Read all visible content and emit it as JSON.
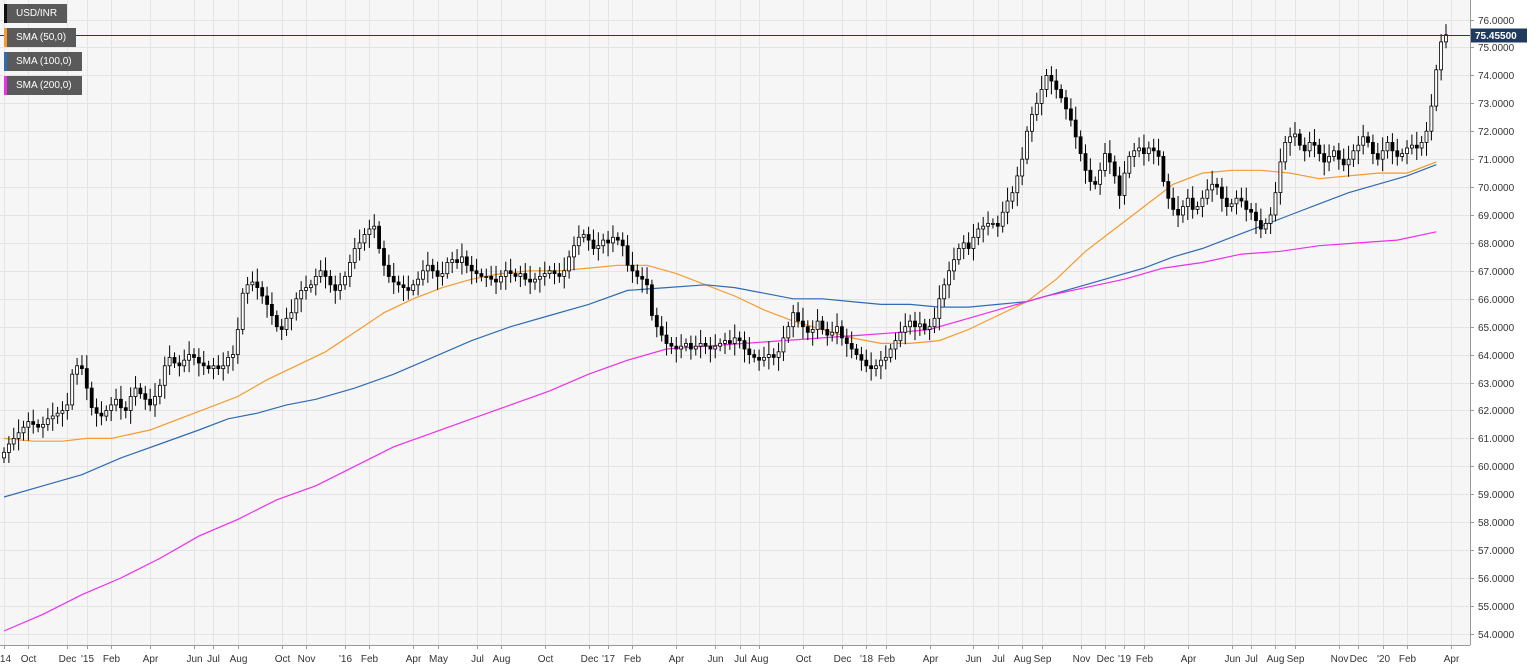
{
  "chart_data": {
    "type": "candlestick",
    "title": "",
    "symbol": "USD/INR",
    "last_price_label": "75.45500",
    "last_price": 75.455,
    "ylim": [
      53.6,
      76.7
    ],
    "y_ticks": [
      {
        "value": 76,
        "label": "76.0000"
      },
      {
        "value": 75,
        "label": "75.0000"
      },
      {
        "value": 74,
        "label": "74.0000"
      },
      {
        "value": 73,
        "label": "73.0000"
      },
      {
        "value": 72,
        "label": "72.0000"
      },
      {
        "value": 71,
        "label": "71.0000"
      },
      {
        "value": 70,
        "label": "70.0000"
      },
      {
        "value": 69,
        "label": "69.0000"
      },
      {
        "value": 68,
        "label": "68.0000"
      },
      {
        "value": 67,
        "label": "67.0000"
      },
      {
        "value": 66,
        "label": "66.0000"
      },
      {
        "value": 65,
        "label": "65.0000"
      },
      {
        "value": 64,
        "label": "64.0000"
      },
      {
        "value": 63,
        "label": "63.0000"
      },
      {
        "value": 62,
        "label": "62.0000"
      },
      {
        "value": 61,
        "label": "61.0000"
      },
      {
        "value": 60,
        "label": "60.0000"
      },
      {
        "value": 59,
        "label": "59.0000"
      },
      {
        "value": 58,
        "label": "58.0000"
      },
      {
        "value": 57,
        "label": "57.0000"
      },
      {
        "value": 56,
        "label": "56.0000"
      },
      {
        "value": 55,
        "label": "55.0000"
      },
      {
        "value": 54,
        "label": "54.0000"
      }
    ],
    "x_ticks": [
      {
        "i": 0,
        "label": "'14"
      },
      {
        "i": 5,
        "label": "Oct"
      },
      {
        "i": 13,
        "label": "Dec"
      },
      {
        "i": 17,
        "label": "'15"
      },
      {
        "i": 22,
        "label": "Feb"
      },
      {
        "i": 30,
        "label": "Apr"
      },
      {
        "i": 39,
        "label": "Jun"
      },
      {
        "i": 43,
        "label": "Jul"
      },
      {
        "i": 48,
        "label": "Aug"
      },
      {
        "i": 57,
        "label": "Oct"
      },
      {
        "i": 62,
        "label": "Nov"
      },
      {
        "i": 70,
        "label": "'16"
      },
      {
        "i": 75,
        "label": "Feb"
      },
      {
        "i": 84,
        "label": "Apr"
      },
      {
        "i": 89,
        "label": "May"
      },
      {
        "i": 97,
        "label": "Jul"
      },
      {
        "i": 102,
        "label": "Aug"
      },
      {
        "i": 111,
        "label": "Oct"
      },
      {
        "i": 120,
        "label": "Dec"
      },
      {
        "i": 124,
        "label": "'17"
      },
      {
        "i": 129,
        "label": "Feb"
      },
      {
        "i": 138,
        "label": "Apr"
      },
      {
        "i": 146,
        "label": "Jun"
      },
      {
        "i": 151,
        "label": "Jul"
      },
      {
        "i": 155,
        "label": "Aug"
      },
      {
        "i": 164,
        "label": "Oct"
      },
      {
        "i": 172,
        "label": "Dec"
      },
      {
        "i": 177,
        "label": "'18"
      },
      {
        "i": 181,
        "label": "Feb"
      },
      {
        "i": 190,
        "label": "Apr"
      },
      {
        "i": 199,
        "label": "Jun"
      },
      {
        "i": 204,
        "label": "Jul"
      },
      {
        "i": 209,
        "label": "Aug"
      },
      {
        "i": 213,
        "label": "Sep"
      },
      {
        "i": 221,
        "label": "Nov"
      },
      {
        "i": 226,
        "label": "Dec"
      },
      {
        "i": 230,
        "label": "'19"
      },
      {
        "i": 234,
        "label": "Feb"
      },
      {
        "i": 243,
        "label": "Apr"
      },
      {
        "i": 252,
        "label": "Jun"
      },
      {
        "i": 256,
        "label": "Jul"
      },
      {
        "i": 261,
        "label": "Aug"
      },
      {
        "i": 265,
        "label": "Sep"
      },
      {
        "i": 274,
        "label": "Nov"
      },
      {
        "i": 278,
        "label": "Dec"
      },
      {
        "i": 283,
        "label": "'20"
      },
      {
        "i": 288,
        "label": "Feb"
      },
      {
        "i": 297,
        "label": "Apr"
      }
    ],
    "closes": [
      60.5,
      60.8,
      61.0,
      61.2,
      61.4,
      61.6,
      61.5,
      61.4,
      61.5,
      61.7,
      61.8,
      61.9,
      62.0,
      62.2,
      63.3,
      63.6,
      63.5,
      62.8,
      62.1,
      61.9,
      61.8,
      62.0,
      62.2,
      62.4,
      62.1,
      62.0,
      62.5,
      62.8,
      62.6,
      62.4,
      62.2,
      62.5,
      62.9,
      63.6,
      63.9,
      63.7,
      63.6,
      63.8,
      64.0,
      63.9,
      63.7,
      63.6,
      63.5,
      63.6,
      63.5,
      63.6,
      63.9,
      64.0,
      64.9,
      66.2,
      66.5,
      66.6,
      66.4,
      66.1,
      65.8,
      65.4,
      65.0,
      64.9,
      65.3,
      65.5,
      66.0,
      66.3,
      66.4,
      66.5,
      66.8,
      67.0,
      66.8,
      66.5,
      66.3,
      66.5,
      66.8,
      67.3,
      67.8,
      68.0,
      68.3,
      68.5,
      68.6,
      67.8,
      67.2,
      66.8,
      66.6,
      66.5,
      66.4,
      66.3,
      66.5,
      66.7,
      67.0,
      67.2,
      67.0,
      66.8,
      66.9,
      67.3,
      67.4,
      67.3,
      67.5,
      67.2,
      67.0,
      66.9,
      66.8,
      66.8,
      66.7,
      66.6,
      66.8,
      67.0,
      66.9,
      66.8,
      66.9,
      66.7,
      66.6,
      66.7,
      66.8,
      66.9,
      67.0,
      66.9,
      66.8,
      67.0,
      67.5,
      67.9,
      68.2,
      68.3,
      68.1,
      67.8,
      67.9,
      68.1,
      68.0,
      68.2,
      68.1,
      67.9,
      67.2,
      67.0,
      66.8,
      66.7,
      66.5,
      65.4,
      65.0,
      64.7,
      64.4,
      64.3,
      64.2,
      64.3,
      64.4,
      64.2,
      64.3,
      64.4,
      64.3,
      64.2,
      64.3,
      64.4,
      64.5,
      64.4,
      64.6,
      64.5,
      64.2,
      64.0,
      63.9,
      63.8,
      63.9,
      64.0,
      63.9,
      64.1,
      64.6,
      65.0,
      65.5,
      65.2,
      65.0,
      64.8,
      64.9,
      65.2,
      64.9,
      64.7,
      64.8,
      65.0,
      64.6,
      64.4,
      64.2,
      64.0,
      63.8,
      63.6,
      63.5,
      63.6,
      63.8,
      63.9,
      64.2,
      64.5,
      64.8,
      65.0,
      65.2,
      65.0,
      65.1,
      64.9,
      65.0,
      65.3,
      66.0,
      66.5,
      67.0,
      67.4,
      67.8,
      68.0,
      67.8,
      68.2,
      68.5,
      68.6,
      68.7,
      68.7,
      68.6,
      69.1,
      69.5,
      69.8,
      70.4,
      71.0,
      72.0,
      72.6,
      73.0,
      73.5,
      74.0,
      73.8,
      73.5,
      73.2,
      72.8,
      72.4,
      71.8,
      71.2,
      70.6,
      70.2,
      70.1,
      70.6,
      71.2,
      70.9,
      70.4,
      69.7,
      70.5,
      71.1,
      71.3,
      71.4,
      71.2,
      71.4,
      71.3,
      71.1,
      70.2,
      69.6,
      69.2,
      69.0,
      69.3,
      69.6,
      69.2,
      69.3,
      69.6,
      69.9,
      70.1,
      70.0,
      69.6,
      69.3,
      69.4,
      69.6,
      69.5,
      69.2,
      69.1,
      68.8,
      68.5,
      68.7,
      69.0,
      69.8,
      70.9,
      71.6,
      71.8,
      71.9,
      71.5,
      71.3,
      71.6,
      71.5,
      71.2,
      70.9,
      71.1,
      71.3,
      71.0,
      70.8,
      71.0,
      71.3,
      71.5,
      71.8,
      71.6,
      71.2,
      71.0,
      71.3,
      71.6,
      71.3,
      71.1,
      71.2,
      71.4,
      71.5,
      71.4,
      71.6,
      72.0,
      72.9,
      74.2,
      75.2,
      75.455
    ],
    "series": [
      {
        "name": "SMA (50,0)",
        "color": "#f59a2c",
        "points": [
          [
            0,
            61.0
          ],
          [
            6,
            60.9
          ],
          [
            12,
            60.9
          ],
          [
            17,
            61.0
          ],
          [
            22,
            61.0
          ],
          [
            30,
            61.3
          ],
          [
            36,
            61.7
          ],
          [
            42,
            62.1
          ],
          [
            48,
            62.5
          ],
          [
            54,
            63.1
          ],
          [
            60,
            63.6
          ],
          [
            66,
            64.1
          ],
          [
            72,
            64.8
          ],
          [
            78,
            65.5
          ],
          [
            84,
            66.0
          ],
          [
            90,
            66.4
          ],
          [
            96,
            66.7
          ],
          [
            102,
            66.9
          ],
          [
            108,
            67.0
          ],
          [
            114,
            67.0
          ],
          [
            120,
            67.1
          ],
          [
            126,
            67.2
          ],
          [
            132,
            67.2
          ],
          [
            138,
            66.9
          ],
          [
            144,
            66.5
          ],
          [
            150,
            66.1
          ],
          [
            156,
            65.6
          ],
          [
            162,
            65.2
          ],
          [
            168,
            64.9
          ],
          [
            174,
            64.6
          ],
          [
            180,
            64.4
          ],
          [
            186,
            64.4
          ],
          [
            192,
            64.5
          ],
          [
            198,
            64.9
          ],
          [
            204,
            65.4
          ],
          [
            210,
            65.9
          ],
          [
            216,
            66.7
          ],
          [
            222,
            67.7
          ],
          [
            228,
            68.5
          ],
          [
            234,
            69.3
          ],
          [
            240,
            70.1
          ],
          [
            246,
            70.5
          ],
          [
            252,
            70.6
          ],
          [
            258,
            70.6
          ],
          [
            264,
            70.5
          ],
          [
            270,
            70.3
          ],
          [
            276,
            70.4
          ],
          [
            282,
            70.5
          ],
          [
            288,
            70.5
          ],
          [
            294,
            70.9
          ]
        ]
      },
      {
        "name": "SMA (100,0)",
        "color": "#2f6bb3",
        "points": [
          [
            0,
            58.9
          ],
          [
            8,
            59.3
          ],
          [
            16,
            59.7
          ],
          [
            24,
            60.3
          ],
          [
            32,
            60.8
          ],
          [
            40,
            61.3
          ],
          [
            46,
            61.7
          ],
          [
            52,
            61.9
          ],
          [
            58,
            62.2
          ],
          [
            64,
            62.4
          ],
          [
            72,
            62.8
          ],
          [
            80,
            63.3
          ],
          [
            88,
            63.9
          ],
          [
            96,
            64.5
          ],
          [
            104,
            65.0
          ],
          [
            112,
            65.4
          ],
          [
            120,
            65.8
          ],
          [
            128,
            66.3
          ],
          [
            136,
            66.4
          ],
          [
            144,
            66.5
          ],
          [
            150,
            66.4
          ],
          [
            156,
            66.2
          ],
          [
            162,
            66.0
          ],
          [
            168,
            66.0
          ],
          [
            174,
            65.9
          ],
          [
            180,
            65.8
          ],
          [
            186,
            65.8
          ],
          [
            192,
            65.7
          ],
          [
            198,
            65.7
          ],
          [
            204,
            65.8
          ],
          [
            210,
            65.9
          ],
          [
            216,
            66.2
          ],
          [
            222,
            66.5
          ],
          [
            228,
            66.8
          ],
          [
            234,
            67.1
          ],
          [
            240,
            67.5
          ],
          [
            246,
            67.8
          ],
          [
            252,
            68.2
          ],
          [
            258,
            68.6
          ],
          [
            264,
            69.0
          ],
          [
            270,
            69.4
          ],
          [
            276,
            69.8
          ],
          [
            282,
            70.1
          ],
          [
            288,
            70.4
          ],
          [
            294,
            70.8
          ]
        ]
      },
      {
        "name": "SMA (200,0)",
        "color": "#ee2ee9",
        "points": [
          [
            0,
            54.1
          ],
          [
            8,
            54.7
          ],
          [
            16,
            55.4
          ],
          [
            24,
            56.0
          ],
          [
            32,
            56.7
          ],
          [
            40,
            57.5
          ],
          [
            48,
            58.1
          ],
          [
            56,
            58.8
          ],
          [
            64,
            59.3
          ],
          [
            72,
            60.0
          ],
          [
            80,
            60.7
          ],
          [
            88,
            61.2
          ],
          [
            96,
            61.7
          ],
          [
            104,
            62.2
          ],
          [
            112,
            62.7
          ],
          [
            120,
            63.3
          ],
          [
            128,
            63.8
          ],
          [
            136,
            64.2
          ],
          [
            144,
            64.3
          ],
          [
            152,
            64.4
          ],
          [
            160,
            64.5
          ],
          [
            168,
            64.6
          ],
          [
            176,
            64.7
          ],
          [
            184,
            64.8
          ],
          [
            190,
            64.9
          ],
          [
            198,
            65.3
          ],
          [
            206,
            65.7
          ],
          [
            214,
            66.1
          ],
          [
            222,
            66.4
          ],
          [
            230,
            66.7
          ],
          [
            238,
            67.1
          ],
          [
            246,
            67.3
          ],
          [
            254,
            67.6
          ],
          [
            262,
            67.7
          ],
          [
            270,
            67.9
          ],
          [
            278,
            68.0
          ],
          [
            286,
            68.1
          ],
          [
            294,
            68.4
          ]
        ]
      }
    ]
  }
}
